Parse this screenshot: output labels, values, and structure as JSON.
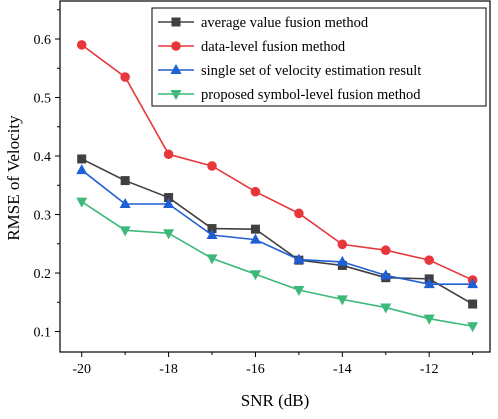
{
  "chart_data": {
    "type": "line",
    "title": "",
    "xlabel": "SNR (dB)",
    "ylabel": "RMSE of Velocity",
    "xlim": [
      -20.5,
      -10.6
    ],
    "ylim": [
      0.065,
      0.665
    ],
    "x": [
      -20,
      -19,
      -18,
      -17,
      -16,
      -15,
      -14,
      -13,
      -12,
      -11
    ],
    "xticks": [
      -20,
      -18,
      -16,
      -14,
      -12
    ],
    "xtick_labels": [
      "-20",
      "-18",
      "-16",
      "-14",
      "-12"
    ],
    "yticks": [
      0.1,
      0.2,
      0.3,
      0.4,
      0.5,
      0.6
    ],
    "ytick_labels": [
      "0.1",
      "0.2",
      "0.3",
      "0.4",
      "0.5",
      "0.6"
    ],
    "grid": false,
    "legend_position": "top-right",
    "series": [
      {
        "name": "average value fusion method",
        "color": "#404040",
        "marker": "square",
        "values": [
          0.395,
          0.358,
          0.329,
          0.276,
          0.275,
          0.222,
          0.213,
          0.192,
          0.19,
          0.147
        ]
      },
      {
        "name": "data-level fusion method",
        "color": "#e8373a",
        "marker": "circle",
        "values": [
          0.59,
          0.535,
          0.403,
          0.383,
          0.339,
          0.302,
          0.249,
          0.239,
          0.222,
          0.188
        ]
      },
      {
        "name": "single set of velocity estimation result",
        "color": "#1f5fd6",
        "marker": "triangle-up",
        "values": [
          0.376,
          0.318,
          0.318,
          0.265,
          0.257,
          0.223,
          0.219,
          0.196,
          0.181,
          0.181
        ]
      },
      {
        "name": "proposed symbol-level fusion method",
        "color": "#3cb878",
        "marker": "triangle-down",
        "values": [
          0.322,
          0.273,
          0.268,
          0.225,
          0.198,
          0.171,
          0.155,
          0.141,
          0.122,
          0.109
        ]
      }
    ]
  }
}
